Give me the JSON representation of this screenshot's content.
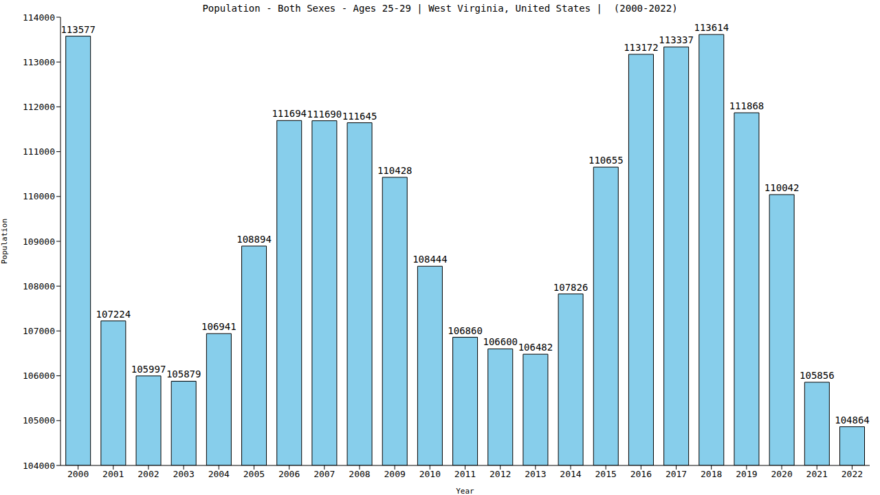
{
  "chart_data": {
    "type": "bar",
    "title": "Population - Both Sexes - Ages 25-29 | West Virginia, United States |  (2000-2022)",
    "x_label": "Year",
    "y_label": "Population",
    "categories": [
      "2000",
      "2001",
      "2002",
      "2003",
      "2004",
      "2005",
      "2006",
      "2007",
      "2008",
      "2009",
      "2010",
      "2011",
      "2012",
      "2013",
      "2014",
      "2015",
      "2016",
      "2017",
      "2018",
      "2019",
      "2020",
      "2021",
      "2022"
    ],
    "values": [
      113577,
      107224,
      105997,
      105879,
      106941,
      108894,
      111694,
      111690,
      111645,
      110428,
      108444,
      106860,
      106600,
      106482,
      107826,
      110655,
      113172,
      113337,
      113614,
      111868,
      110042,
      105856,
      104864
    ],
    "color": "#87ceeb",
    "ylim": [
      104000,
      114000
    ],
    "yticks": [
      104000,
      105000,
      106000,
      107000,
      108000,
      109000,
      110000,
      111000,
      112000,
      113000,
      114000
    ],
    "grid": false,
    "data_labels": true
  }
}
